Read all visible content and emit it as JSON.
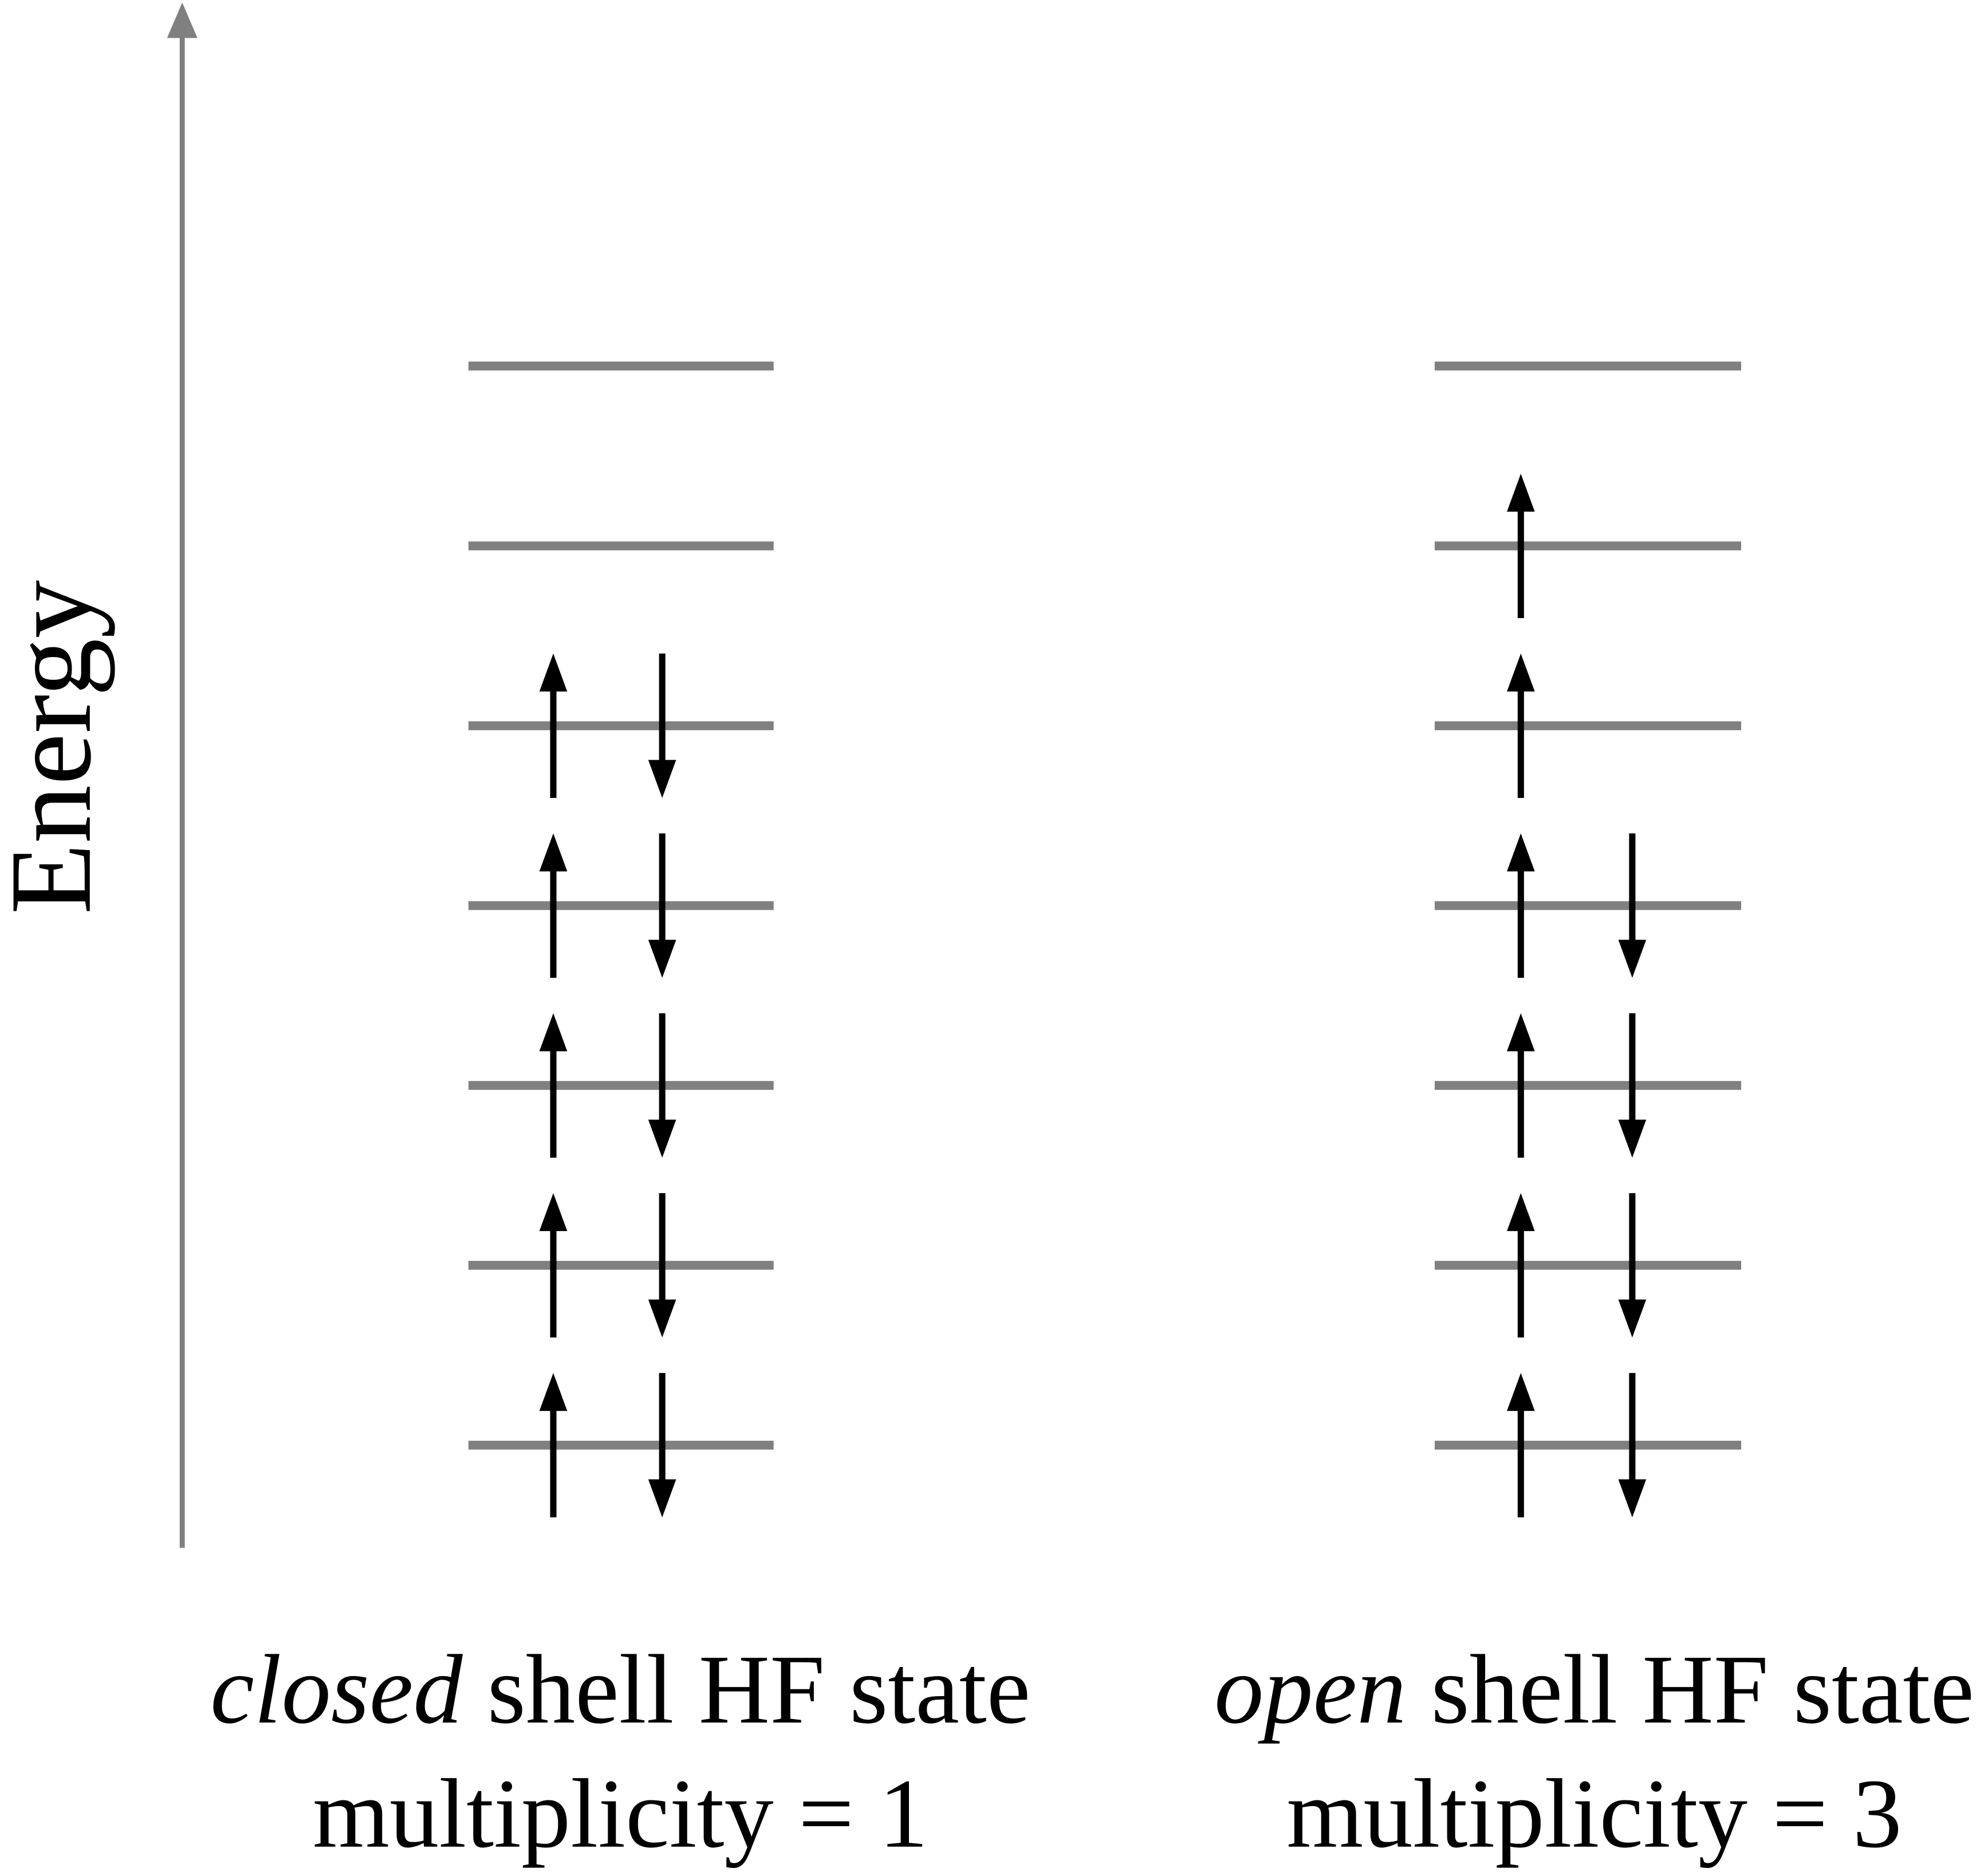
{
  "axis_label": "Energy",
  "panels": [
    {
      "caption_emphasis": "closed",
      "caption_rest": " shell HF state",
      "subtitle": "multiplicity = 1"
    },
    {
      "caption_emphasis": "open",
      "caption_rest": " shell HF state",
      "subtitle": "multiplicity = 3"
    }
  ]
}
